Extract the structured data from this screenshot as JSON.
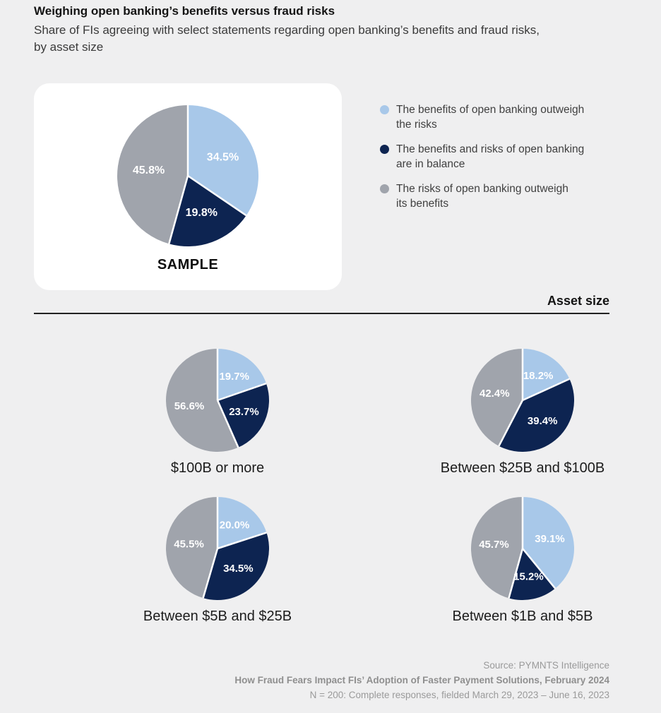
{
  "header": {
    "title": "Weighing open banking’s benefits versus fraud risks",
    "subtitle": "Share of FIs agreeing with select statements regarding open banking’s benefits and fraud risks,\nby asset size"
  },
  "legend": {
    "items": [
      {
        "name": "benefits-outweigh",
        "label": "The benefits of open banking outweigh\nthe risks",
        "color": "#a8c8e9"
      },
      {
        "name": "in-balance",
        "label": "The benefits and risks of open banking\nare in balance",
        "color": "#0d2451"
      },
      {
        "name": "risks-outweigh",
        "label": "The risks of open banking outweigh\nits benefits",
        "color": "#a0a4ac"
      }
    ]
  },
  "sections": {
    "asset_size_label": "Asset size"
  },
  "chart_data": [
    {
      "type": "pie",
      "title": "SAMPLE",
      "categories": [
        "The benefits of open banking outweigh the risks",
        "The benefits and risks of open banking are in balance",
        "The risks of open banking outweigh its benefits"
      ],
      "values": [
        34.5,
        19.8,
        45.8
      ],
      "labels": [
        "34.5%",
        "19.8%",
        "45.8%"
      ],
      "colors": [
        "#a8c8e9",
        "#0d2451",
        "#a0a4ac"
      ],
      "start_angle_deg": 0,
      "direction": "clockwise"
    },
    {
      "type": "pie",
      "title": "$100B or more",
      "categories": [
        "The benefits of open banking outweigh the risks",
        "The benefits and risks of open banking are in balance",
        "The risks of open banking outweigh its benefits"
      ],
      "values": [
        19.7,
        23.7,
        56.6
      ],
      "labels": [
        "19.7%",
        "23.7%",
        "56.6%"
      ],
      "colors": [
        "#a8c8e9",
        "#0d2451",
        "#a0a4ac"
      ],
      "start_angle_deg": 0,
      "direction": "clockwise"
    },
    {
      "type": "pie",
      "title": "Between $25B and $100B",
      "categories": [
        "The benefits of open banking outweigh the risks",
        "The benefits and risks of open banking are in balance",
        "The risks of open banking outweigh its benefits"
      ],
      "values": [
        18.2,
        39.4,
        42.4
      ],
      "labels": [
        "18.2%",
        "39.4%",
        "42.4%"
      ],
      "colors": [
        "#a8c8e9",
        "#0d2451",
        "#a0a4ac"
      ],
      "start_angle_deg": 0,
      "direction": "clockwise"
    },
    {
      "type": "pie",
      "title": "Between $5B and $25B",
      "categories": [
        "The benefits of open banking outweigh the risks",
        "The benefits and risks of open banking are in balance",
        "The risks of open banking outweigh its benefits"
      ],
      "values": [
        20.0,
        34.5,
        45.5
      ],
      "labels": [
        "20.0%",
        "34.5%",
        "45.5%"
      ],
      "colors": [
        "#a8c8e9",
        "#0d2451",
        "#a0a4ac"
      ],
      "start_angle_deg": 0,
      "direction": "clockwise"
    },
    {
      "type": "pie",
      "title": "Between $1B and $5B",
      "categories": [
        "The benefits of open banking outweigh the risks",
        "The benefits and risks of open banking are in balance",
        "The risks of open banking outweigh its benefits"
      ],
      "values": [
        39.1,
        15.2,
        45.7
      ],
      "labels": [
        "39.1%",
        "15.2%",
        "45.7%"
      ],
      "colors": [
        "#a8c8e9",
        "#0d2451",
        "#a0a4ac"
      ],
      "start_angle_deg": 0,
      "direction": "clockwise"
    }
  ],
  "footer": {
    "source_line": "Source: PYMNTS Intelligence",
    "report_line": "How Fraud Fears Impact FIs’ Adoption of Faster Payment Solutions, February 2024",
    "sample_line": "N = 200: Complete responses, fielded March 29, 2023 – June 16, 2023"
  }
}
